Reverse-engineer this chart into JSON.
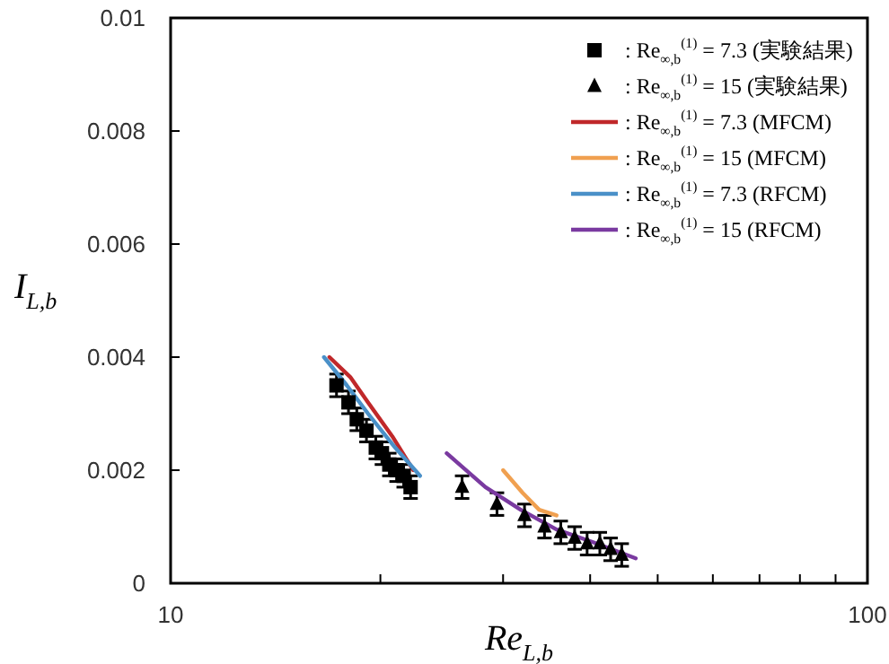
{
  "chart_data": {
    "type": "scatter",
    "xlabel": "Re$_{L,b}$",
    "ylabel": "I$_{L,b}$",
    "log": "x",
    "xlim": [
      10,
      100
    ],
    "ylim": [
      0,
      0.01
    ],
    "xticks": [
      10,
      {
        "value": 20,
        "label": null
      },
      {
        "value": 30,
        "label": null
      },
      {
        "value": 40,
        "label": null
      },
      {
        "value": 50,
        "label": null
      },
      {
        "value": 60,
        "label": null
      },
      {
        "value": 70,
        "label": null
      },
      {
        "value": 80,
        "label": null
      },
      {
        "value": 90,
        "label": null
      },
      100
    ],
    "yticks": [
      0,
      0.002,
      0.004,
      0.006,
      0.008,
      0.01
    ],
    "grid": false,
    "legend": "top right",
    "series": [
      {
        "name": ": Re$_{∞,b}$$^{(1)}$ = 7.3 (実験結果)",
        "type": "scatter",
        "marker": "square",
        "color": "#000000",
        "x": [
          17.3,
          18.0,
          18.5,
          19.1,
          19.7,
          20.1,
          20.6,
          21.1,
          21.6,
          22.1
        ],
        "values": [
          0.0035,
          0.0032,
          0.0029,
          0.0027,
          0.0024,
          0.0023,
          0.0021,
          0.002,
          0.0019,
          0.0017
        ],
        "errors": [
          0.0002,
          0.0002,
          0.0002,
          0.0002,
          0.0002,
          0.0002,
          0.0002,
          0.0002,
          0.0002,
          0.0002
        ]
      },
      {
        "name": ": Re$_{∞,b}$$^{(1)}$ = 15 (実験結果)",
        "type": "scatter",
        "marker": "triangle",
        "color": "#000000",
        "x": [
          26.2,
          29.4,
          32.2,
          34.4,
          36.3,
          38.0,
          39.6,
          41.3,
          42.8,
          44.4
        ],
        "values": [
          0.0017,
          0.0014,
          0.0012,
          0.001,
          0.0009,
          0.0008,
          0.0007,
          0.0007,
          0.0006,
          0.0005
        ],
        "errors": [
          0.0002,
          0.0002,
          0.0002,
          0.0002,
          0.0002,
          0.0002,
          0.0002,
          0.0002,
          0.0002,
          0.0002
        ]
      },
      {
        "name": ": Re$_{∞,b}$$^{(1)}$ = 7.3 (MFCM)",
        "type": "line",
        "color": "#c0282a",
        "x": [
          16.9,
          18.1,
          19.2,
          20.8,
          22.3
        ],
        "values": [
          0.004,
          0.00365,
          0.0032,
          0.0026,
          0.002
        ]
      },
      {
        "name": ": Re$_{∞,b}$$^{(1)}$ = 15 (MFCM)",
        "type": "line",
        "color": "#f0a050",
        "x": [
          30.0,
          32.0,
          33.8,
          35.8
        ],
        "values": [
          0.002,
          0.0016,
          0.0013,
          0.0012
        ]
      },
      {
        "name": ": Re$_{∞,b}$$^{(1)}$ = 7.3 (RFCM)",
        "type": "line",
        "color": "#4a90c8",
        "x": [
          16.6,
          17.9,
          19.2,
          21.0,
          22.8
        ],
        "values": [
          0.004,
          0.0035,
          0.003,
          0.0024,
          0.0019
        ]
      },
      {
        "name": ": Re$_{∞,b}$$^{(1)}$ = 15 (RFCM)",
        "type": "line",
        "color": "#7a3aa0",
        "x": [
          24.9,
          28.3,
          31.8,
          35.8,
          40.3,
          46.5
        ],
        "values": [
          0.0023,
          0.0017,
          0.0013,
          0.00095,
          0.00073,
          0.00044
        ]
      }
    ]
  }
}
